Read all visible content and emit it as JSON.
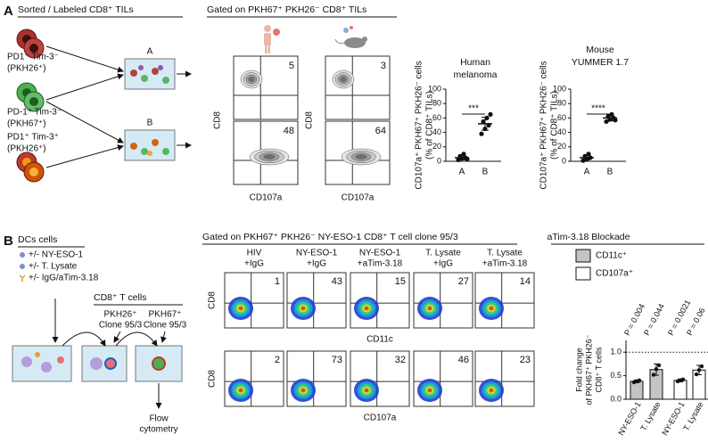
{
  "panel_a": {
    "label": "A",
    "title": "Sorted / Labeled CD8⁺ TILs",
    "cells": [
      [
        "PD1⁻ Tim-3⁻",
        "(PKH26⁺)"
      ],
      [
        "PD-1⁺ Tim-3⁻",
        "(PKH67⁺)"
      ],
      [
        "PD1⁺ Tim-3⁺",
        "(PKH26⁺)"
      ]
    ],
    "wells": [
      "A",
      "B"
    ],
    "flow_title": "Gated on PKH67⁺ PKH26⁻ CD8⁺ TILs",
    "flow_y_label": "CD8",
    "flow_x_label": "CD107a",
    "flow_human": [
      5,
      48
    ],
    "flow_mouse": [
      3,
      64
    ]
  },
  "panel_b": {
    "label": "B",
    "dc_title": "DCs cells",
    "dc_items": [
      "+/- NY-ESO-1",
      "+/- T. Lysate",
      "+/- IgG/aTim-3.18"
    ],
    "t_title": "CD8⁺ T cells",
    "clones": [
      [
        "PKH26⁺",
        "Clone 95/3"
      ],
      [
        "PKH67⁺",
        "Clone 95/3"
      ]
    ],
    "flow_label": [
      "Flow",
      "cytometry"
    ],
    "flow_title": "Gated on PKH67⁺ PKH26⁻ NY-ESO-1 CD8⁺ T cell clone 95/3",
    "conditions": [
      [
        "HIV",
        "+IgG"
      ],
      [
        "NY-ESO-1",
        "+IgG"
      ],
      [
        "NY-ESO-1",
        "+aTim-3.18"
      ],
      [
        "T. Lysate",
        "+IgG"
      ],
      [
        "T. Lysate",
        "+aTim-3.18"
      ]
    ],
    "flow_y_label": "CD8",
    "top_x_label": "CD11c",
    "bottom_x_label": "CD107a",
    "top_values": [
      1,
      43,
      15,
      27,
      14
    ],
    "bottom_values": [
      2,
      73,
      32,
      46,
      23
    ]
  },
  "chart_data": [
    {
      "type": "dot",
      "title": [
        "Human",
        "melanoma"
      ],
      "y_label": [
        "CD107a⁺ PKH67⁺ PKH26⁻ cells",
        "(% of CD8⁺ TILs)"
      ],
      "categories": [
        "A",
        "B"
      ],
      "points": [
        [
          2,
          4,
          5,
          7,
          10,
          3
        ],
        [
          38,
          45,
          50,
          55,
          60,
          65
        ]
      ],
      "means": [
        5,
        52
      ],
      "errors": [
        3,
        9
      ],
      "ylim": [
        0,
        100
      ],
      "yticks": [
        0,
        20,
        40,
        60,
        80,
        100
      ],
      "annotation": "***"
    },
    {
      "type": "dot",
      "title": [
        "Mouse",
        "YUMMER 1.7"
      ],
      "y_label": [
        "CD107a⁺ PKH67⁺ PKH26⁻ cells",
        "(% of CD8⁺ TILs)"
      ],
      "categories": [
        "A",
        "B"
      ],
      "points": [
        [
          1,
          3,
          5,
          7,
          10
        ],
        [
          55,
          58,
          60,
          62,
          65,
          57
        ]
      ],
      "means": [
        5,
        60
      ],
      "errors": [
        3,
        4
      ],
      "ylim": [
        0,
        100
      ],
      "yticks": [
        0,
        20,
        40,
        60,
        80,
        100
      ],
      "annotation": "****"
    },
    {
      "type": "bar",
      "title": "aTim-3.18 Blockade",
      "y_label": [
        "Fold change",
        "of PKH67⁺ PKH26⁻",
        "CD8⁺ T cells"
      ],
      "categories": [
        "NY-ESO-1",
        "T. Lysate",
        "NY-ESO-1",
        "T. Lysate"
      ],
      "series": [
        {
          "name": "CD11c⁺",
          "color": "#c4c4c4",
          "values": [
            0.38,
            0.63,
            null,
            null
          ],
          "errors": [
            0.03,
            0.12,
            null,
            null
          ],
          "points": [
            [
              0.36,
              0.38,
              0.4
            ],
            [
              0.52,
              0.64,
              0.72
            ],
            null,
            null
          ]
        },
        {
          "name": "CD107a⁺",
          "color": "#ffffff",
          "values": [
            null,
            null,
            0.4,
            0.62
          ],
          "errors": [
            null,
            null,
            0.03,
            0.1
          ],
          "points": [
            null,
            null,
            [
              0.38,
              0.4,
              0.42
            ],
            [
              0.53,
              0.62,
              0.7
            ]
          ]
        }
      ],
      "annotations": [
        "P = 0.004",
        "P = 0.044",
        "P = 0.0021",
        "P = 0.06"
      ],
      "ylim": [
        0,
        1.25
      ],
      "yticks": [
        {
          "value": 0,
          "label": "0.0"
        },
        {
          "value": 0.5,
          "label": "0.5"
        },
        {
          "value": 1,
          "label": "1.0"
        }
      ],
      "reference_line": 1
    }
  ]
}
